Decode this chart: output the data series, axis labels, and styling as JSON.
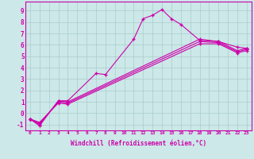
{
  "xlabel": "Windchill (Refroidissement éolien,°C)",
  "ylabel": "",
  "background_color": "#cce8e8",
  "grid_color": "#aacccc",
  "line_color": "#cc00aa",
  "xlim": [
    -0.5,
    23.5
  ],
  "ylim": [
    -1.5,
    9.8
  ],
  "xticks": [
    0,
    1,
    2,
    3,
    4,
    5,
    6,
    7,
    8,
    9,
    10,
    11,
    12,
    13,
    14,
    15,
    16,
    17,
    18,
    19,
    20,
    21,
    22,
    23
  ],
  "yticks": [
    -1,
    0,
    1,
    2,
    3,
    4,
    5,
    6,
    7,
    8,
    9
  ],
  "line1_x": [
    0,
    1,
    3,
    4,
    7,
    8,
    11,
    12,
    13,
    14,
    15,
    16,
    18,
    20,
    22,
    23
  ],
  "line1_y": [
    -0.5,
    -1.1,
    1.1,
    1.1,
    3.5,
    3.4,
    6.5,
    8.3,
    8.6,
    9.1,
    8.3,
    7.8,
    6.4,
    6.3,
    5.8,
    5.7
  ],
  "line2_x": [
    0,
    1,
    3,
    4,
    18,
    20,
    22,
    23
  ],
  "line2_y": [
    -0.5,
    -1.0,
    1.1,
    1.0,
    6.5,
    6.3,
    5.5,
    5.7
  ],
  "line3_x": [
    0,
    1,
    3,
    4,
    18,
    20,
    22,
    23
  ],
  "line3_y": [
    -0.5,
    -0.9,
    1.0,
    0.9,
    6.3,
    6.2,
    5.4,
    5.6
  ],
  "line4_x": [
    0,
    1,
    3,
    4,
    18,
    20,
    22,
    23
  ],
  "line4_y": [
    -0.5,
    -0.8,
    0.9,
    0.8,
    6.1,
    6.1,
    5.3,
    5.5
  ]
}
